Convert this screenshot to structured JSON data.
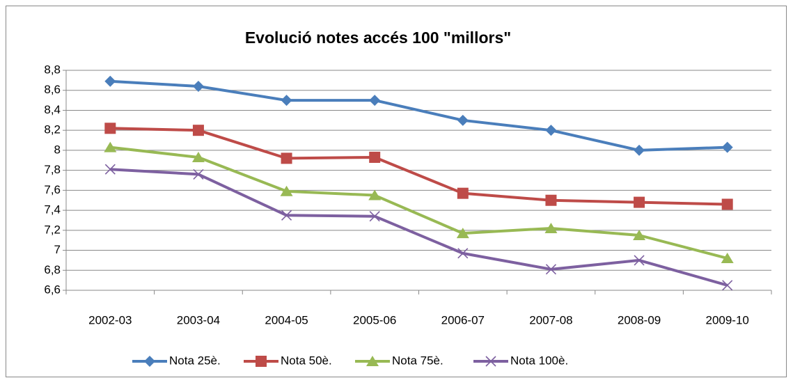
{
  "chart_data": {
    "type": "line",
    "title": "Evolució notes accés 100 \"millors\"",
    "categories": [
      "2002-03",
      "2003-04",
      "2004-05",
      "2005-06",
      "2006-07",
      "2007-08",
      "2008-09",
      "2009-10"
    ],
    "series": [
      {
        "name": "Nota 25è.",
        "color": "#4a7ebb",
        "values": [
          8.69,
          8.64,
          8.5,
          8.5,
          8.3,
          8.2,
          8.0,
          8.03
        ]
      },
      {
        "name": "Nota 50è.",
        "color": "#be4b48",
        "values": [
          8.22,
          8.2,
          7.92,
          7.93,
          7.57,
          7.5,
          7.48,
          7.46
        ]
      },
      {
        "name": "Nota 75è.",
        "color": "#98b954",
        "values": [
          8.03,
          7.93,
          7.59,
          7.55,
          7.17,
          7.22,
          7.15,
          6.92
        ]
      },
      {
        "name": "Nota 100è.",
        "color": "#7d60a0",
        "values": [
          7.81,
          7.76,
          7.35,
          7.34,
          6.97,
          6.81,
          6.9,
          6.65
        ]
      }
    ],
    "ylim": [
      6.6,
      8.8
    ],
    "yticks": [
      {
        "value": 6.6,
        "label": "6,6"
      },
      {
        "value": 6.8,
        "label": "6,8"
      },
      7,
      {
        "value": 7.2,
        "label": "7,2"
      },
      {
        "value": 7.4,
        "label": "7,4"
      },
      {
        "value": 7.6,
        "label": "7,6"
      },
      {
        "value": 7.8,
        "label": "7,8"
      },
      8,
      {
        "value": 8.2,
        "label": "8,2"
      },
      {
        "value": 8.4,
        "label": "8,4"
      },
      {
        "value": 8.6,
        "label": "8,6"
      },
      {
        "value": 8.8,
        "label": "8,8"
      }
    ],
    "grid": true,
    "legend": "bottom"
  }
}
